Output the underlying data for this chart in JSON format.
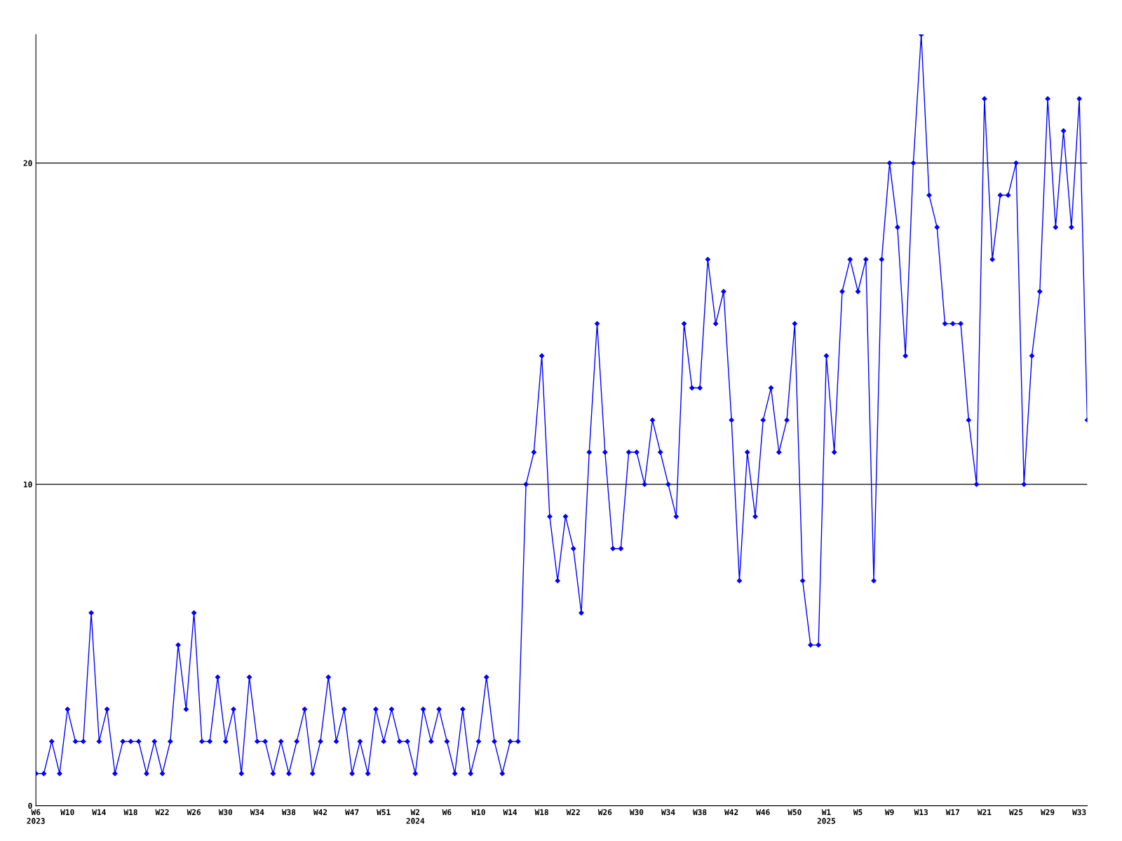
{
  "chart_data": {
    "type": "line",
    "categories": [
      "W6\n2023",
      null,
      null,
      null,
      "W10",
      null,
      null,
      null,
      "W14",
      null,
      null,
      null,
      "W18",
      null,
      null,
      null,
      "W22",
      null,
      null,
      null,
      "W26",
      null,
      null,
      null,
      "W30",
      null,
      null,
      null,
      "W34",
      null,
      null,
      null,
      "W38",
      null,
      null,
      null,
      "W42",
      null,
      null,
      null,
      "W47",
      null,
      null,
      null,
      "W51",
      null,
      null,
      null,
      "W2\n2024",
      null,
      null,
      null,
      "W6",
      null,
      null,
      null,
      "W10",
      null,
      null,
      null,
      "W14",
      null,
      null,
      null,
      "W18",
      null,
      null,
      null,
      "W22",
      null,
      null,
      null,
      "W26",
      null,
      null,
      null,
      "W30",
      null,
      null,
      null,
      "W34",
      null,
      null,
      null,
      "W38",
      null,
      null,
      null,
      "W42",
      null,
      null,
      null,
      "W46",
      null,
      null,
      null,
      "W50",
      null,
      null,
      null,
      "W1\n2025",
      null,
      null,
      null,
      "W5",
      null,
      null,
      null,
      "W9",
      null,
      null,
      null,
      "W13",
      null,
      null,
      null,
      "W17",
      null,
      null,
      null,
      "W21",
      null,
      null,
      null,
      "W25",
      null,
      null,
      null,
      "W29",
      null,
      null,
      null,
      "W33",
      null
    ],
    "series": [
      {
        "color": "#0000ff",
        "values": [
          1,
          1,
          2,
          1,
          3,
          2,
          2,
          6,
          2,
          3,
          1,
          2,
          2,
          2,
          1,
          2,
          1,
          2,
          5,
          3,
          6,
          2,
          2,
          4,
          2,
          3,
          1,
          4,
          2,
          2,
          1,
          2,
          1,
          2,
          3,
          1,
          2,
          4,
          2,
          3,
          1,
          2,
          1,
          3,
          2,
          3,
          2,
          2,
          1,
          3,
          2,
          3,
          2,
          1,
          3,
          1,
          2,
          4,
          2,
          1,
          2,
          2,
          10,
          11,
          14,
          9,
          7,
          9,
          8,
          6,
          11,
          15,
          11,
          8,
          8,
          11,
          11,
          10,
          12,
          11,
          10,
          9,
          15,
          13,
          13,
          17,
          15,
          16,
          12,
          7,
          11,
          9,
          12,
          13,
          11,
          12,
          15,
          7,
          5,
          5,
          14,
          11,
          16,
          17,
          16,
          17,
          7,
          17,
          20,
          18,
          14,
          20,
          24,
          19,
          18,
          15,
          15,
          15,
          12,
          10,
          22,
          17,
          19,
          19,
          20,
          10,
          14,
          16,
          22,
          18,
          21,
          18,
          22,
          12
        ]
      }
    ],
    "ylim": [
      0,
      24
    ],
    "yticks": [
      0,
      10,
      20
    ],
    "grid": "y",
    "marker": "diamond",
    "line_style": "solid"
  }
}
